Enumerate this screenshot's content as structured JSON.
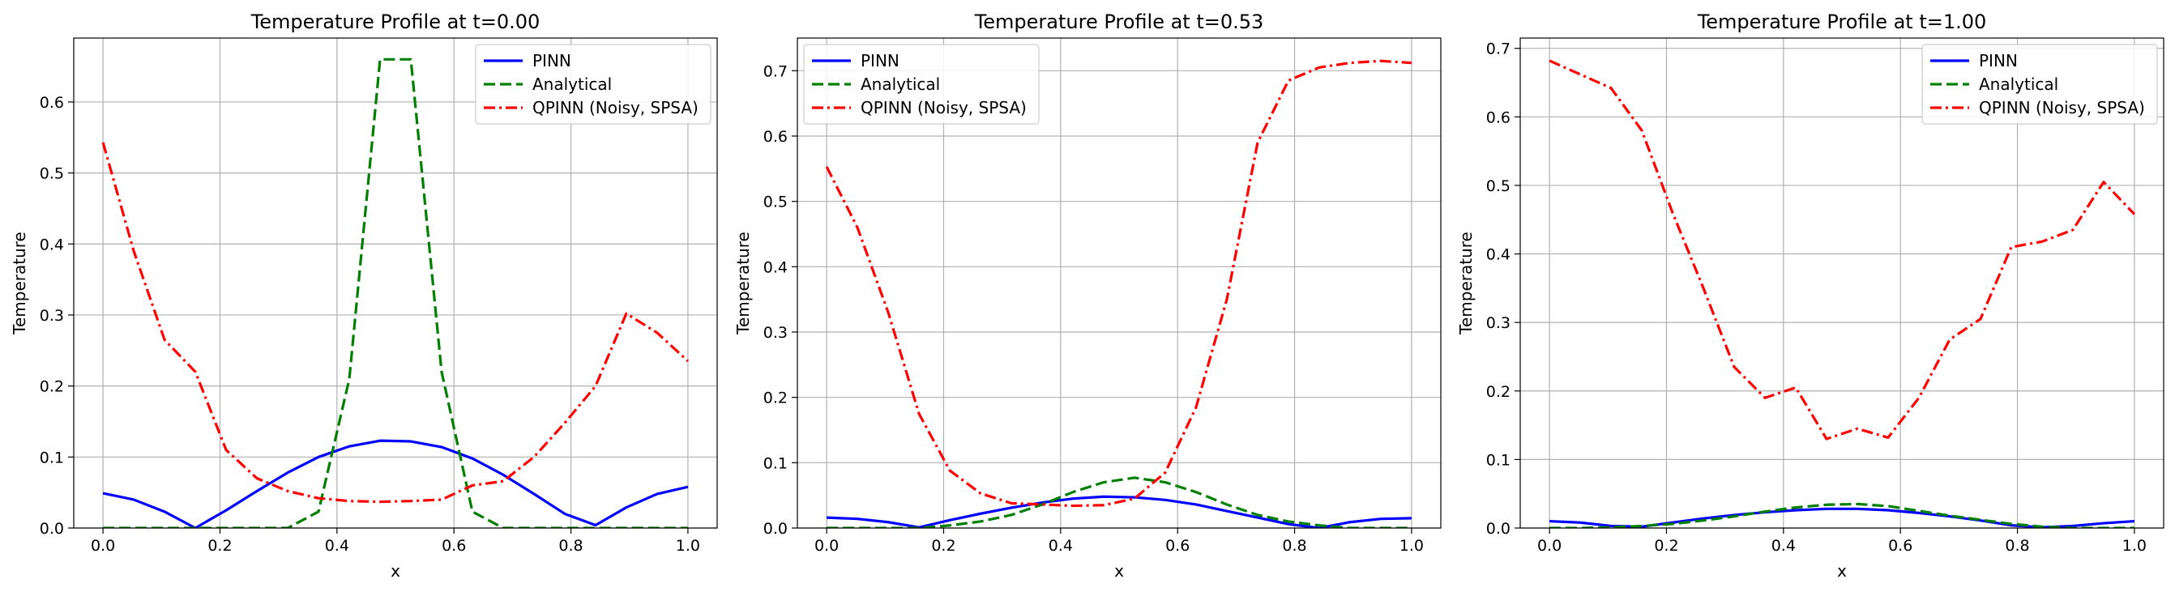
{
  "chart_data": [
    {
      "type": "line",
      "title": "Temperature Profile at t=0.00",
      "xlabel": "x",
      "ylabel": "Temperature",
      "xlim": [
        -0.05,
        1.05
      ],
      "ylim": [
        0,
        0.69
      ],
      "xticks": [
        "0.0",
        "0.2",
        "0.4",
        "0.6",
        "0.8",
        "1.0"
      ],
      "yticks": [
        "0.0",
        "0.1",
        "0.2",
        "0.3",
        "0.4",
        "0.5",
        "0.6"
      ],
      "grid": true,
      "legend_position": "top-right",
      "x": [
        0.0,
        0.0526,
        0.1053,
        0.1579,
        0.2105,
        0.2632,
        0.3158,
        0.3684,
        0.4211,
        0.4737,
        0.5263,
        0.5789,
        0.6316,
        0.6842,
        0.7368,
        0.7895,
        0.8421,
        0.8947,
        0.9474,
        1.0
      ],
      "series": [
        {
          "name": "PINN",
          "color": "#0000ff",
          "dash": "solid",
          "values": [
            0.049,
            0.04,
            0.023,
            0.0,
            0.025,
            0.052,
            0.078,
            0.1,
            0.115,
            0.123,
            0.122,
            0.114,
            0.098,
            0.075,
            0.048,
            0.02,
            0.004,
            0.029,
            0.048,
            0.058
          ]
        },
        {
          "name": "Analytical",
          "color": "#008000",
          "dash": "dashed",
          "values": [
            0.0,
            0.0,
            0.0,
            0.0,
            0.0,
            0.0,
            0.0,
            0.023,
            0.21,
            0.66,
            0.66,
            0.22,
            0.023,
            0.0,
            0.0,
            0.0,
            0.0,
            0.0,
            0.0,
            0.0
          ]
        },
        {
          "name": "QPINN (Noisy, SPSA)",
          "color": "#ff0000",
          "dash": "dashdot",
          "values": [
            0.543,
            0.39,
            0.265,
            0.22,
            0.11,
            0.07,
            0.052,
            0.042,
            0.038,
            0.037,
            0.038,
            0.04,
            0.06,
            0.066,
            0.1,
            0.148,
            0.2,
            0.302,
            0.275,
            0.235
          ]
        }
      ]
    },
    {
      "type": "line",
      "title": "Temperature Profile at t=0.53",
      "xlabel": "x",
      "ylabel": "Temperature",
      "xlim": [
        -0.05,
        1.05
      ],
      "ylim": [
        0,
        0.75
      ],
      "xticks": [
        "0.0",
        "0.2",
        "0.4",
        "0.6",
        "0.8",
        "1.0"
      ],
      "yticks": [
        "0.0",
        "0.1",
        "0.2",
        "0.3",
        "0.4",
        "0.5",
        "0.6",
        "0.7"
      ],
      "grid": true,
      "legend_position": "top-left",
      "x": [
        0.0,
        0.0526,
        0.1053,
        0.1579,
        0.2105,
        0.2632,
        0.3158,
        0.3684,
        0.4211,
        0.4737,
        0.5263,
        0.5789,
        0.6316,
        0.6842,
        0.7368,
        0.7895,
        0.8421,
        0.8947,
        0.9474,
        1.0
      ],
      "series": [
        {
          "name": "PINN",
          "color": "#0000ff",
          "dash": "solid",
          "values": [
            0.016,
            0.014,
            0.009,
            0.001,
            0.012,
            0.022,
            0.031,
            0.039,
            0.045,
            0.048,
            0.047,
            0.043,
            0.036,
            0.026,
            0.016,
            0.006,
            0.0,
            0.009,
            0.014,
            0.015
          ]
        },
        {
          "name": "Analytical",
          "color": "#008000",
          "dash": "dashed",
          "values": [
            0.0,
            0.0,
            0.0,
            0.0,
            0.004,
            0.01,
            0.02,
            0.036,
            0.055,
            0.07,
            0.077,
            0.07,
            0.055,
            0.036,
            0.02,
            0.01,
            0.004,
            0.0,
            0.0,
            0.0
          ]
        },
        {
          "name": "QPINN (Noisy, SPSA)",
          "color": "#ff0000",
          "dash": "dashdot",
          "values": [
            0.553,
            0.46,
            0.33,
            0.175,
            0.088,
            0.053,
            0.038,
            0.036,
            0.034,
            0.035,
            0.045,
            0.085,
            0.185,
            0.35,
            0.59,
            0.685,
            0.705,
            0.712,
            0.715,
            0.712
          ]
        }
      ]
    },
    {
      "type": "line",
      "title": "Temperature Profile at t=1.00",
      "xlabel": "x",
      "ylabel": "Temperature",
      "xlim": [
        -0.05,
        1.05
      ],
      "ylim": [
        0,
        0.715
      ],
      "xticks": [
        "0.0",
        "0.2",
        "0.4",
        "0.6",
        "0.8",
        "1.0"
      ],
      "yticks": [
        "0.0",
        "0.1",
        "0.2",
        "0.3",
        "0.4",
        "0.5",
        "0.6",
        "0.7"
      ],
      "grid": true,
      "legend_position": "top-right",
      "x": [
        0.0,
        0.0526,
        0.1053,
        0.1579,
        0.2105,
        0.2632,
        0.3158,
        0.3684,
        0.4211,
        0.4737,
        0.5263,
        0.5789,
        0.6316,
        0.6842,
        0.7368,
        0.7895,
        0.8421,
        0.8947,
        0.9474,
        1.0
      ],
      "series": [
        {
          "name": "PINN",
          "color": "#0000ff",
          "dash": "solid",
          "values": [
            0.01,
            0.008,
            0.003,
            0.002,
            0.008,
            0.014,
            0.019,
            0.023,
            0.026,
            0.028,
            0.028,
            0.026,
            0.022,
            0.017,
            0.011,
            0.004,
            0.001,
            0.003,
            0.007,
            0.01
          ]
        },
        {
          "name": "Analytical",
          "color": "#008000",
          "dash": "dashed",
          "values": [
            0.0,
            0.0,
            0.001,
            0.003,
            0.006,
            0.011,
            0.017,
            0.024,
            0.03,
            0.034,
            0.035,
            0.032,
            0.025,
            0.018,
            0.012,
            0.006,
            0.002,
            0.0,
            0.0,
            0.0
          ]
        },
        {
          "name": "QPINN (Noisy, SPSA)",
          "color": "#ff0000",
          "dash": "dashdot",
          "values": [
            0.682,
            0.662,
            0.642,
            0.58,
            0.46,
            0.35,
            0.235,
            0.19,
            0.205,
            0.13,
            0.145,
            0.132,
            0.19,
            0.275,
            0.305,
            0.41,
            0.418,
            0.435,
            0.505,
            0.458
          ]
        }
      ]
    }
  ]
}
